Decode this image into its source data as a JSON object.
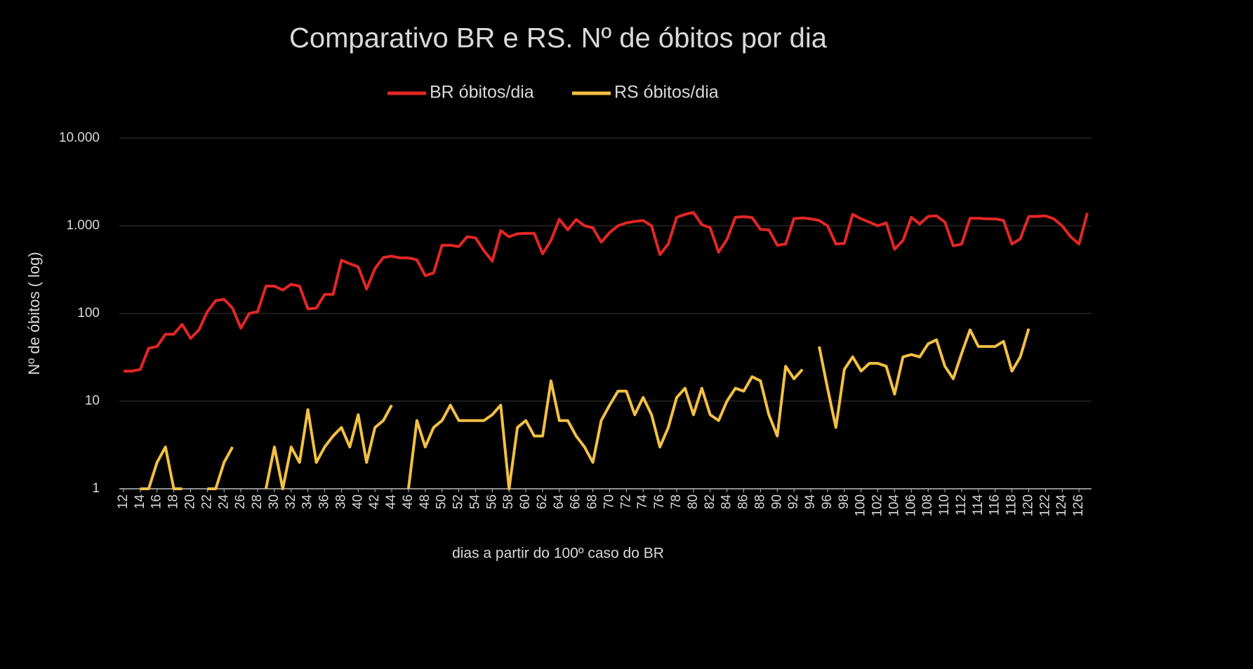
{
  "chart_data": {
    "type": "line",
    "title": "Comparativo BR e RS. Nº de óbitos por dia",
    "x_label": "dias a partir do 100º caso do BR",
    "y_label": "Nº de óbitos ( log)",
    "log_scale": true,
    "grid": true,
    "legend": "top",
    "x": [
      12,
      13,
      14,
      15,
      16,
      17,
      18,
      19,
      20,
      21,
      22,
      23,
      24,
      25,
      26,
      27,
      28,
      29,
      30,
      31,
      32,
      33,
      34,
      35,
      36,
      37,
      38,
      39,
      40,
      41,
      42,
      43,
      44,
      45,
      46,
      47,
      48,
      49,
      50,
      51,
      52,
      53,
      54,
      55,
      56,
      57,
      58,
      59,
      60,
      61,
      62,
      63,
      64,
      65,
      66,
      67,
      68,
      69,
      70,
      71,
      72,
      73,
      74,
      75,
      76,
      77,
      78,
      79,
      80,
      81,
      82,
      83,
      84,
      85,
      86,
      87,
      88,
      89,
      90,
      91,
      92,
      93,
      94,
      95,
      96,
      97,
      98,
      99,
      100,
      101,
      102,
      103,
      104,
      105,
      106,
      107,
      108,
      109,
      110,
      111,
      112,
      113,
      114,
      115,
      116,
      117,
      118,
      119,
      120,
      121,
      122,
      123,
      124,
      125,
      126,
      127
    ],
    "xlim": [
      11.5,
      127.5
    ],
    "xticks": [
      12,
      14,
      16,
      18,
      20,
      22,
      24,
      26,
      28,
      30,
      32,
      34,
      36,
      38,
      40,
      42,
      44,
      46,
      48,
      50,
      52,
      54,
      56,
      58,
      60,
      62,
      64,
      66,
      68,
      70,
      72,
      74,
      76,
      78,
      80,
      82,
      84,
      86,
      88,
      90,
      92,
      94,
      96,
      98,
      100,
      102,
      104,
      106,
      108,
      110,
      112,
      114,
      116,
      118,
      120,
      122,
      124,
      126
    ],
    "ylim": [
      1,
      10000
    ],
    "yticks": [
      1,
      10,
      100,
      {
        "value": 1000,
        "label": "1.000"
      },
      {
        "value": 10000,
        "label": "10.000"
      }
    ],
    "series": [
      {
        "name": "BR óbitos/dia",
        "color": "#e32626",
        "values": [
          22,
          22,
          23,
          40,
          42,
          58,
          58,
          75,
          52,
          65,
          105,
          140,
          145,
          115,
          68,
          100,
          105,
          205,
          205,
          185,
          215,
          205,
          113,
          115,
          165,
          165,
          405,
          370,
          340,
          190,
          325,
          435,
          450,
          430,
          430,
          410,
          270,
          290,
          600,
          600,
          580,
          750,
          730,
          520,
          395,
          880,
          750,
          810,
          820,
          820,
          480,
          680,
          1190,
          900,
          1180,
          1000,
          950,
          650,
          840,
          1000,
          1080,
          1120,
          1150,
          1000,
          470,
          620,
          1250,
          1350,
          1420,
          1030,
          950,
          500,
          700,
          1250,
          1270,
          1240,
          910,
          900,
          600,
          620,
          1210,
          1230,
          1200,
          1150,
          1000,
          620,
          630,
          1350,
          1200,
          1100,
          1000,
          1080,
          540,
          680,
          1250,
          1050,
          1280,
          1300,
          1100,
          590,
          620,
          1220,
          1220,
          1200,
          1200,
          1150,
          620,
          710,
          1280,
          1280,
          1300,
          1200,
          1000,
          750,
          620,
          1400
        ]
      },
      {
        "name": "RS óbitos/dia",
        "color": "#f2c043",
        "values": [
          null,
          null,
          1,
          1,
          2,
          3,
          1,
          1,
          null,
          null,
          1,
          1,
          2,
          3,
          null,
          null,
          null,
          1,
          3,
          1,
          3,
          2,
          8,
          2,
          3,
          4,
          5,
          3,
          7,
          2,
          5,
          6,
          9,
          null,
          1,
          6,
          3,
          5,
          6,
          9,
          6,
          6,
          6,
          6,
          7,
          9,
          1,
          5,
          6,
          4,
          4,
          17,
          6,
          6,
          4,
          3,
          2,
          6,
          9,
          13,
          13,
          7,
          11,
          7,
          3,
          5,
          11,
          14,
          7,
          14,
          7,
          6,
          10,
          14,
          13,
          19,
          17,
          7,
          4,
          25,
          18,
          23,
          null,
          42,
          14,
          5,
          23,
          32,
          22,
          27,
          27,
          25,
          12,
          32,
          34,
          32,
          45,
          50,
          25,
          18,
          35,
          65,
          42,
          42,
          42,
          48,
          22,
          32,
          67,
          null,
          null,
          null,
          null,
          null,
          null,
          null
        ]
      }
    ]
  }
}
